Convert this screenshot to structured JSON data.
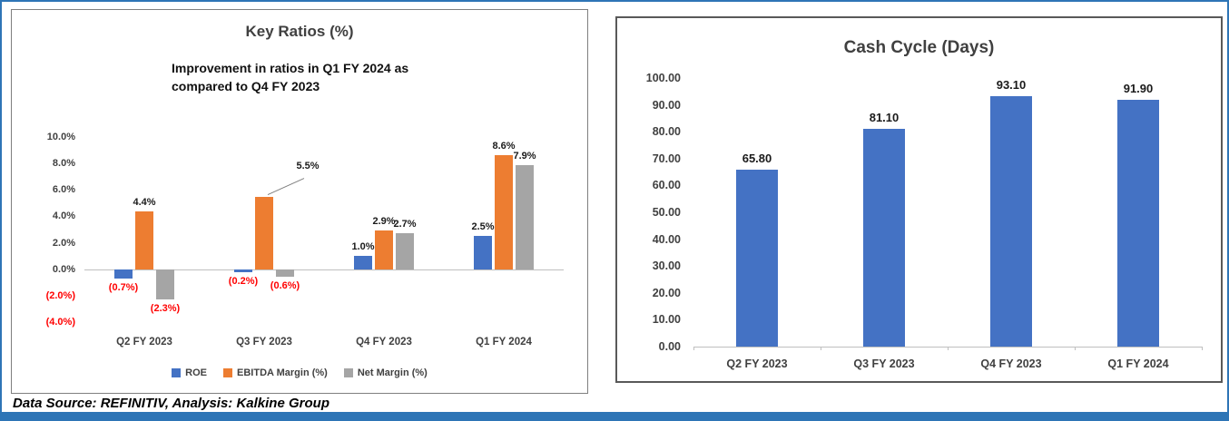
{
  "page": {
    "footer": "Data Source: REFINITIV, Analysis: Kalkine Group"
  },
  "colors": {
    "bar_blue": "#4472C4",
    "bar_orange": "#ED7D31",
    "bar_gray": "#A5A5A5",
    "negative_label": "#FF0000",
    "accent_border": "#2E75B6"
  },
  "chart_data": [
    {
      "type": "bar",
      "title": "Key Ratios (%)",
      "subtitle_line1": "Improvement in ratios in Q1 FY 2024 as",
      "subtitle_line2": "compared to Q4 FY 2023",
      "categories": [
        "Q2 FY 2023",
        "Q3 FY 2023",
        "Q4 FY 2023",
        "Q1 FY 2024"
      ],
      "series": [
        {
          "name": "ROE",
          "color": "#4472C4",
          "values": [
            -0.7,
            -0.2,
            1.0,
            2.5
          ],
          "labels": [
            "(0.7%)",
            "(0.2%)",
            "1.0%",
            "2.5%"
          ]
        },
        {
          "name": "EBITDA Margin (%)",
          "color": "#ED7D31",
          "values": [
            4.4,
            5.5,
            2.9,
            8.6
          ],
          "labels": [
            "4.4%",
            "5.5%",
            "2.9%",
            "8.6%"
          ]
        },
        {
          "name": "Net Margin (%)",
          "color": "#A5A5A5",
          "values": [
            -2.3,
            -0.6,
            2.7,
            7.9
          ],
          "labels": [
            "(2.3%)",
            "(0.6%)",
            "2.7%",
            "7.9%"
          ]
        }
      ],
      "ylim": [
        -4,
        10
      ],
      "yticks": [
        {
          "label": "10.0%",
          "value": 10
        },
        {
          "label": "8.0%",
          "value": 8
        },
        {
          "label": "6.0%",
          "value": 6
        },
        {
          "label": "4.0%",
          "value": 4
        },
        {
          "label": "2.0%",
          "value": 2
        },
        {
          "label": "0.0%",
          "value": 0
        },
        {
          "label": "(2.0%)",
          "value": -2,
          "negative": true
        },
        {
          "label": "(4.0%)",
          "value": -4,
          "negative": true
        }
      ],
      "negative_color": "#FF0000",
      "grid": false,
      "legend_position": "bottom",
      "callout": {
        "series": 1,
        "category": 1
      }
    },
    {
      "type": "bar",
      "title": "Cash Cycle (Days)",
      "categories": [
        "Q2 FY 2023",
        "Q3 FY 2023",
        "Q4 FY 2023",
        "Q1 FY 2024"
      ],
      "values": [
        65.8,
        81.1,
        93.1,
        91.9
      ],
      "labels": [
        "65.80",
        "81.10",
        "93.10",
        "91.90"
      ],
      "bar_color": "#4472C4",
      "ylim": [
        0,
        100
      ],
      "ytick_step": 10,
      "yticks": [
        "100.00",
        "90.00",
        "80.00",
        "70.00",
        "60.00",
        "50.00",
        "40.00",
        "30.00",
        "20.00",
        "10.00",
        "0.00"
      ],
      "grid": false,
      "legend_position": "none"
    }
  ]
}
